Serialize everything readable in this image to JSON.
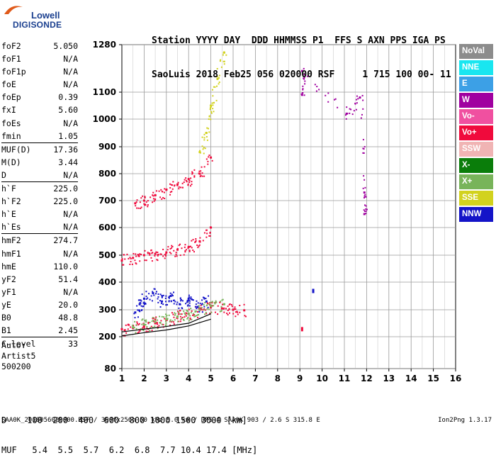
{
  "logo": {
    "line1": "Lowell",
    "line2": "DIGISONDE"
  },
  "header": {
    "line1": "Station YYYY DAY  DDD HHMMSS P1  FFS S AXN PPS IGA PS",
    "line2": "SaoLuis 2018 Feb25 056 020000 RSF     1 715 100 00- 11"
  },
  "params": [
    {
      "name": "foF2",
      "value": "5.050"
    },
    {
      "name": "foF1",
      "value": "N/A"
    },
    {
      "name": "foF1p",
      "value": "N/A"
    },
    {
      "name": "foE",
      "value": "N/A"
    },
    {
      "name": "foEp",
      "value": "0.39"
    },
    {
      "name": "fxI",
      "value": "5.60"
    },
    {
      "name": "foEs",
      "value": "N/A"
    },
    {
      "name": "fmin",
      "value": "1.05"
    },
    {
      "name": "MUF(D)",
      "value": "17.36",
      "sep": true
    },
    {
      "name": "M(D)",
      "value": "3.44"
    },
    {
      "name": "D",
      "value": "N/A"
    },
    {
      "name": "h`F",
      "value": "225.0",
      "sep": true
    },
    {
      "name": "h`F2",
      "value": "225.0"
    },
    {
      "name": "h`E",
      "value": "N/A"
    },
    {
      "name": "h`Es",
      "value": "N/A"
    },
    {
      "name": "hmF2",
      "value": "274.7",
      "sep": true
    },
    {
      "name": "hmF1",
      "value": "N/A"
    },
    {
      "name": "hmE",
      "value": "110.0"
    },
    {
      "name": "yF2",
      "value": "51.4"
    },
    {
      "name": "yF1",
      "value": "N/A"
    },
    {
      "name": "yE",
      "value": "20.0"
    },
    {
      "name": "B0",
      "value": "48.8"
    },
    {
      "name": "B1",
      "value": "2.45"
    },
    {
      "name": "C-level",
      "value": "33",
      "sep": true
    }
  ],
  "auto": {
    "line1": "Auto:",
    "line2": "Artist5",
    "line3": "500200"
  },
  "legend": [
    {
      "label": "NoVal",
      "color": "#8c8c8c"
    },
    {
      "label": "NNE",
      "color": "#19e6f0"
    },
    {
      "label": "E",
      "color": "#3ca0e6"
    },
    {
      "label": "W",
      "color": "#a000a0"
    },
    {
      "label": "Vo-",
      "color": "#f050a0"
    },
    {
      "label": "Vo+",
      "color": "#f00a3c"
    },
    {
      "label": "SSW",
      "color": "#f0b4b4"
    },
    {
      "label": "X-",
      "color": "#0a7d0a"
    },
    {
      "label": "X+",
      "color": "#78b45a"
    },
    {
      "label": "SSE",
      "color": "#d2d21e"
    },
    {
      "label": "NNW",
      "color": "#1414c8"
    }
  ],
  "bottom_table": {
    "row1": "D    100  200  400  600  800 1000 1500 3000 [km]",
    "row2": "MUF   5.4  5.5  5.7  6.2  6.8  7.7 10.4 17.4 [MHz]"
  },
  "footer": {
    "left": "SAA0K_2018056020000.RSF / 300fx256h 50 kHz 5.0 km / DPS-4 SAA0K 903 / 2.6 S 315.8 E",
    "right": "Ion2Png 1.3.17"
  },
  "chart_data": {
    "type": "scatter",
    "xlim": [
      1,
      16
    ],
    "ylim": [
      80,
      1280
    ],
    "x_ticks": [
      "1",
      "2",
      "3",
      "4",
      "5",
      "6",
      "7",
      "8",
      "9",
      "10",
      "11",
      "12",
      "13",
      "14",
      "15",
      "16"
    ],
    "y_ticks": [
      {
        "value": 80,
        "label": "80"
      },
      {
        "value": 200,
        "label": "200"
      },
      {
        "value": 300,
        "label": "300"
      },
      {
        "value": 400,
        "label": "400"
      },
      {
        "value": 500,
        "label": "500"
      },
      {
        "value": 600,
        "label": "600"
      },
      {
        "value": 700,
        "label": "700"
      },
      {
        "value": 800,
        "label": "800"
      },
      {
        "value": 900,
        "label": "900"
      },
      {
        "value": 1000,
        "label": "1000"
      },
      {
        "value": 1100,
        "label": "1100"
      },
      {
        "value": 1280,
        "label": "1280"
      }
    ],
    "y_scale": "nonlinear (approximately log-like)",
    "grid": true,
    "legend_position": "right",
    "echo_traces": [
      {
        "name": "Vo+",
        "color": "#f00a3c",
        "x": [
          1.0,
          1.5,
          2.0,
          2.5,
          3.0,
          3.5,
          4.0,
          4.5,
          5.0,
          5.5,
          6.0,
          6.5
        ],
        "y": [
          228,
          232,
          240,
          250,
          262,
          275,
          285,
          300,
          310,
          305,
          300,
          298
        ]
      },
      {
        "name": "X+",
        "color": "#78b45a",
        "x": [
          1.5,
          2.0,
          2.5,
          3.0,
          3.5,
          4.0,
          4.5,
          5.0,
          5.6
        ],
        "y": [
          235,
          245,
          255,
          265,
          275,
          285,
          300,
          315,
          320
        ]
      },
      {
        "name": "NNW",
        "color": "#1414c8",
        "x": [
          1.6,
          1.8,
          2.0,
          2.4,
          2.8,
          3.2,
          3.6,
          4.0,
          4.4,
          4.8
        ],
        "y": [
          290,
          320,
          340,
          360,
          330,
          350,
          320,
          340,
          310,
          330
        ]
      },
      {
        "name": "Vo+",
        "color": "#f00a3c",
        "x": [
          1.0,
          1.5,
          2.0,
          2.5,
          3.0,
          3.5,
          4.0,
          4.5,
          5.0
        ],
        "y": [
          480,
          490,
          500,
          505,
          510,
          520,
          530,
          550,
          600
        ]
      },
      {
        "name": "Vo+",
        "color": "#f00a3c",
        "x": [
          1.6,
          2.0,
          2.5,
          3.0,
          3.5,
          4.0,
          4.5,
          5.0
        ],
        "y": [
          690,
          700,
          720,
          740,
          760,
          780,
          800,
          860
        ]
      },
      {
        "name": "SSE",
        "color": "#d2d21e",
        "x": [
          4.5,
          4.8,
          5.0,
          5.3,
          5.6
        ],
        "y": [
          880,
          950,
          1050,
          1150,
          1250
        ]
      },
      {
        "name": "W",
        "color": "#a000a0",
        "x": [
          9.1,
          9.1,
          11.1,
          11.7,
          11.9,
          11.9
        ],
        "y": [
          1090,
          1180,
          1020,
          1080,
          730,
          650
        ]
      },
      {
        "name": "NNW",
        "color": "#1414c8",
        "x": [
          9.6
        ],
        "y": [
          368
        ]
      },
      {
        "name": "Vo+",
        "color": "#f00a3c",
        "x": [
          9.1
        ],
        "y": [
          228
        ]
      }
    ],
    "profile_lines": [
      {
        "name": "profile-trace",
        "color": "#000000",
        "x": [
          1.0,
          2.0,
          3.0,
          4.0,
          5.0
        ],
        "y": [
          218,
          228,
          238,
          250,
          285
        ]
      },
      {
        "name": "virtual-height-trace",
        "color": "#000000",
        "x": [
          1.0,
          2.0,
          3.0,
          4.0,
          5.0
        ],
        "y": [
          203,
          215,
          225,
          240,
          265
        ]
      }
    ]
  }
}
